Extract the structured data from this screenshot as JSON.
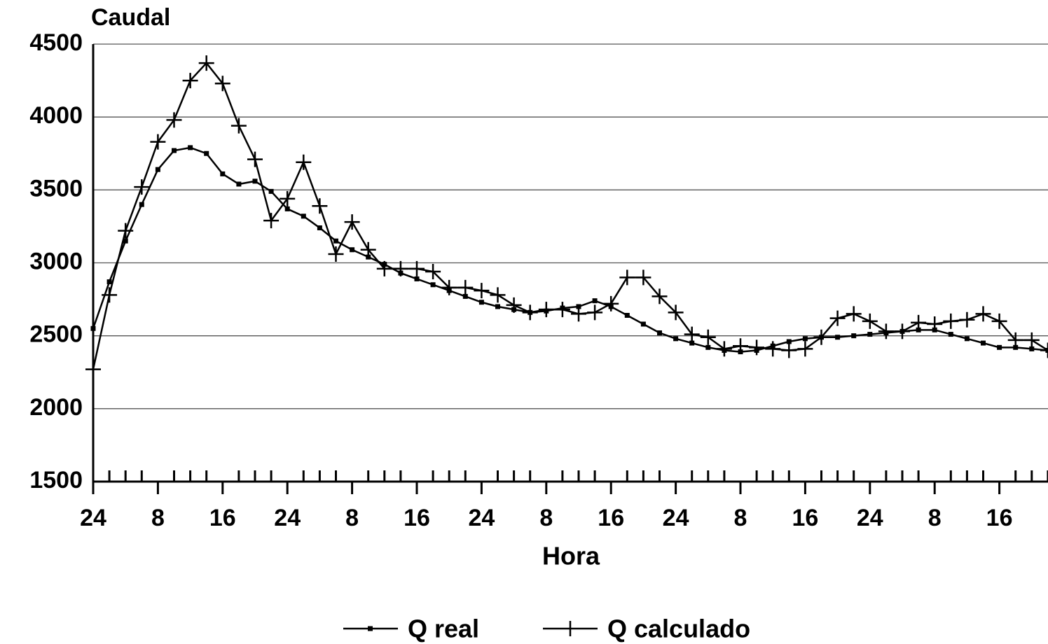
{
  "chart_data": {
    "type": "line",
    "y_label": "Caudal",
    "x_label": "Hora",
    "categories": [
      "24",
      null,
      null,
      null,
      "8",
      null,
      null,
      null,
      "16",
      null,
      null,
      null,
      "24",
      null,
      null,
      null,
      "8",
      null,
      null,
      null,
      "16",
      null,
      null,
      null,
      "24",
      null,
      null,
      null,
      "8",
      null,
      null,
      null,
      "16",
      null,
      null,
      null,
      "24",
      null,
      null,
      null,
      "8",
      null,
      null,
      null,
      "16",
      null,
      null,
      null,
      "24",
      null,
      null,
      null,
      "8",
      null,
      null,
      null,
      "16",
      null,
      null,
      null
    ],
    "series": [
      {
        "name": "Q real",
        "color": "#000000",
        "marker": "square",
        "values": [
          2550,
          2870,
          3150,
          3400,
          3640,
          3770,
          3790,
          3750,
          3610,
          3540,
          3560,
          3490,
          3370,
          3320,
          3240,
          3150,
          3090,
          3040,
          2990,
          2930,
          2890,
          2850,
          2810,
          2770,
          2730,
          2700,
          2680,
          2660,
          2670,
          2690,
          2700,
          2740,
          2700,
          2640,
          2580,
          2520,
          2480,
          2450,
          2420,
          2400,
          2390,
          2400,
          2430,
          2460,
          2480,
          2490,
          2490,
          2500,
          2510,
          2520,
          2530,
          2540,
          2540,
          2510,
          2480,
          2450,
          2420,
          2420,
          2410,
          2400
        ]
      },
      {
        "name": "Q calculado",
        "color": "#000000",
        "marker": "cross",
        "values": [
          2270,
          2780,
          3220,
          3520,
          3830,
          3980,
          4250,
          4370,
          4230,
          3940,
          3710,
          3290,
          3440,
          3690,
          3390,
          3060,
          3280,
          3090,
          2960,
          2960,
          2960,
          2940,
          2830,
          2830,
          2810,
          2780,
          2710,
          2660,
          2680,
          2680,
          2650,
          2660,
          2720,
          2900,
          2900,
          2770,
          2660,
          2510,
          2490,
          2410,
          2430,
          2420,
          2410,
          2400,
          2410,
          2490,
          2620,
          2650,
          2600,
          2530,
          2530,
          2590,
          2580,
          2600,
          2610,
          2650,
          2600,
          2470,
          2470,
          2400
        ]
      }
    ],
    "ylim": [
      1500,
      4500
    ],
    "yticks": [
      1500,
      2000,
      2500,
      3000,
      3500,
      4000,
      4500
    ],
    "grid": true,
    "legend": "bottom"
  }
}
